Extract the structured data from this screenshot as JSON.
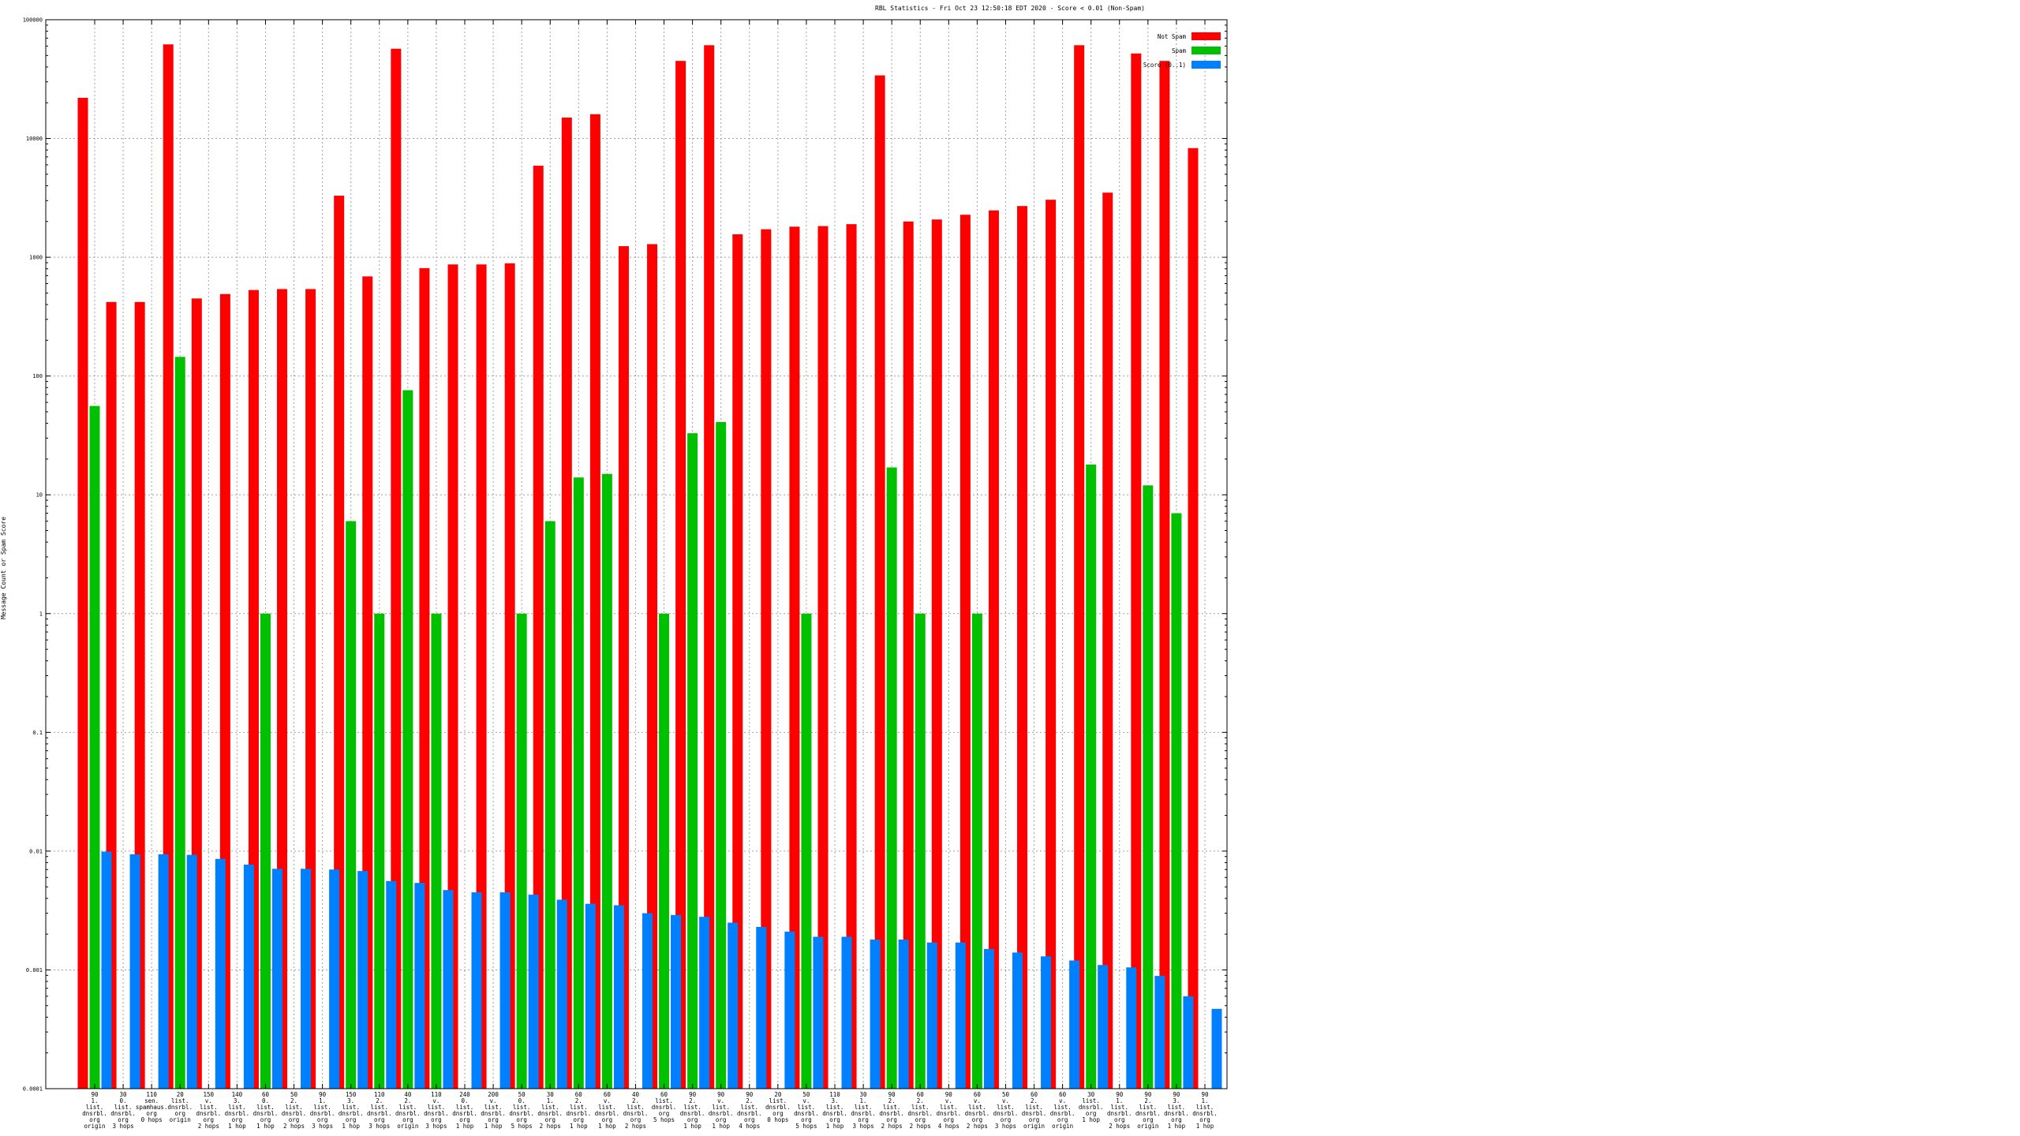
{
  "chart_data": {
    "type": "bar",
    "title": "RBL Statistics - Fri Oct 23 12:50:18 EDT 2020 - Score < 0.01 (Non-Spam)",
    "ylabel": "Message Count or Spam Score",
    "xlabel": "",
    "y_scale": "log",
    "ylim": [
      0.0001,
      100000
    ],
    "y_ticks": [
      0.0001,
      0.001,
      0.01,
      0.1,
      1,
      10,
      100,
      1000,
      10000,
      100000
    ],
    "y_tick_labels": [
      "0.0001",
      "0.001",
      "0.01",
      "0.1",
      "1",
      "10",
      "100",
      "1000",
      "10000",
      "100000"
    ],
    "grid": true,
    "legend_position": "top-right",
    "categories": [
      [
        "90",
        "1.",
        "list.",
        "dnsrbl.",
        "org",
        "origin"
      ],
      [
        "30",
        "0.",
        "list.",
        "dnsrbl.",
        "org",
        "3 hops"
      ],
      [
        "110",
        "sen.",
        "spamhaus.",
        "org",
        "0 hops"
      ],
      [
        "20",
        "list.",
        "dnsrbl.",
        "org",
        "origin"
      ],
      [
        "150",
        "v.",
        "list.",
        "dnsrbl.",
        "org",
        "2 hops"
      ],
      [
        "140",
        "3.",
        "list.",
        "dnsrbl.",
        "org",
        "1 hop"
      ],
      [
        "60",
        "0.",
        "list.",
        "dnsrbl.",
        "org",
        "1 hop"
      ],
      [
        "50",
        "2.",
        "list.",
        "dnsrbl.",
        "org",
        "2 hops"
      ],
      [
        "90",
        "1.",
        "list.",
        "dnsrbl.",
        "org",
        "3 hops"
      ],
      [
        "150",
        "3.",
        "list.",
        "dnsrbl.",
        "org",
        "1 hop"
      ],
      [
        "110",
        "2.",
        "list.",
        "dnsrbl.",
        "org",
        "3 hops"
      ],
      [
        "40",
        "2.",
        "list.",
        "dnsrbl.",
        "org",
        "origin"
      ],
      [
        "110",
        "v.",
        "list.",
        "dnsrbl.",
        "org",
        "3 hops"
      ],
      [
        "240",
        "0.",
        "list.",
        "dnsrbl.",
        "org",
        "1 hop"
      ],
      [
        "200",
        "v.",
        "list.",
        "dnsrbl.",
        "org",
        "1 hop"
      ],
      [
        "50",
        "0.",
        "list.",
        "dnsrbl.",
        "org",
        "5 hops"
      ],
      [
        "30",
        "1.",
        "list.",
        "dnsrbl.",
        "org",
        "2 hops"
      ],
      [
        "60",
        "2.",
        "list.",
        "dnsrbl.",
        "org",
        "1 hop"
      ],
      [
        "60",
        "v.",
        "list.",
        "dnsrbl.",
        "org",
        "1 hop"
      ],
      [
        "40",
        "2.",
        "list.",
        "dnsrbl.",
        "org",
        "2 hops"
      ],
      [
        "60",
        "list.",
        "dnsrbl.",
        "org",
        "5 hops"
      ],
      [
        "90",
        "2.",
        "list.",
        "dnsrbl.",
        "org",
        "1 hop"
      ],
      [
        "90",
        "v.",
        "list.",
        "dnsrbl.",
        "org",
        "1 hop"
      ],
      [
        "90",
        "2.",
        "list.",
        "dnsrbl.",
        "org",
        "4 hops"
      ],
      [
        "20",
        "list.",
        "dnsrbl.",
        "org",
        "0 hops"
      ],
      [
        "50",
        "v.",
        "list.",
        "dnsrbl.",
        "org",
        "5 hops"
      ],
      [
        "110",
        "3.",
        "list.",
        "dnsrbl.",
        "org",
        "1 hop"
      ],
      [
        "30",
        "1.",
        "list.",
        "dnsrbl.",
        "org",
        "3 hops"
      ],
      [
        "90",
        "2.",
        "list.",
        "dnsrbl.",
        "org",
        "2 hops"
      ],
      [
        "60",
        "2.",
        "list.",
        "dnsrbl.",
        "org",
        "2 hops"
      ],
      [
        "90",
        "v.",
        "list.",
        "dnsrbl.",
        "org",
        "4 hops"
      ],
      [
        "60",
        "v.",
        "list.",
        "dnsrbl.",
        "org",
        "2 hops"
      ],
      [
        "50",
        "v.",
        "list.",
        "dnsrbl.",
        "org",
        "3 hops"
      ],
      [
        "60",
        "2.",
        "list.",
        "dnsrbl.",
        "org",
        "origin"
      ],
      [
        "60",
        "v.",
        "list.",
        "dnsrbl.",
        "org",
        "origin"
      ],
      [
        "30",
        "list.",
        "dnsrbl.",
        "org",
        "1 hop"
      ],
      [
        "90",
        "1.",
        "list.",
        "dnsrbl.",
        "org",
        "2 hops"
      ],
      [
        "90",
        "2.",
        "list.",
        "dnsrbl.",
        "org",
        "origin"
      ],
      [
        "90",
        "3.",
        "list.",
        "dnsrbl.",
        "org",
        "1 hop"
      ],
      [
        "90",
        "1.",
        "list.",
        "dnsrbl.",
        "org",
        "1 hop"
      ]
    ],
    "series": [
      {
        "name": "Not Spam",
        "color": "#ff0000",
        "values": [
          22000,
          420,
          420,
          62000,
          450,
          490,
          530,
          540,
          540,
          3300,
          690,
          57000,
          810,
          870,
          870,
          890,
          5900,
          15000,
          16000,
          1240,
          1290,
          45000,
          61000,
          1560,
          1720,
          1810,
          1830,
          1900,
          34000,
          2000,
          2080,
          2280,
          2480,
          2700,
          3050,
          61000,
          3500,
          52000,
          45000,
          8300
        ]
      },
      {
        "name": "Spam",
        "color": "#00c000",
        "values": [
          56,
          null,
          null,
          145,
          null,
          null,
          1,
          null,
          null,
          6,
          1,
          76,
          1,
          null,
          null,
          1,
          6,
          14,
          15,
          null,
          1,
          33,
          41,
          null,
          null,
          1,
          null,
          null,
          17,
          1,
          null,
          1,
          null,
          null,
          null,
          18,
          null,
          12,
          7,
          null
        ]
      },
      {
        "name": "Score (0..1)",
        "color": "#0080ff",
        "values": [
          0.0099,
          0.0094,
          0.0094,
          0.0093,
          0.0086,
          0.0077,
          0.0071,
          0.0071,
          0.007,
          0.0068,
          0.0056,
          0.0054,
          0.0047,
          0.0045,
          0.0045,
          0.0043,
          0.0039,
          0.0036,
          0.0035,
          0.003,
          0.0029,
          0.0028,
          0.0025,
          0.0023,
          0.0021,
          0.0019,
          0.0019,
          0.0018,
          0.0018,
          0.0017,
          0.0017,
          0.0015,
          0.0014,
          0.0013,
          0.0012,
          0.0011,
          0.00105,
          0.00089,
          0.0006,
          0.00047
        ]
      }
    ]
  }
}
